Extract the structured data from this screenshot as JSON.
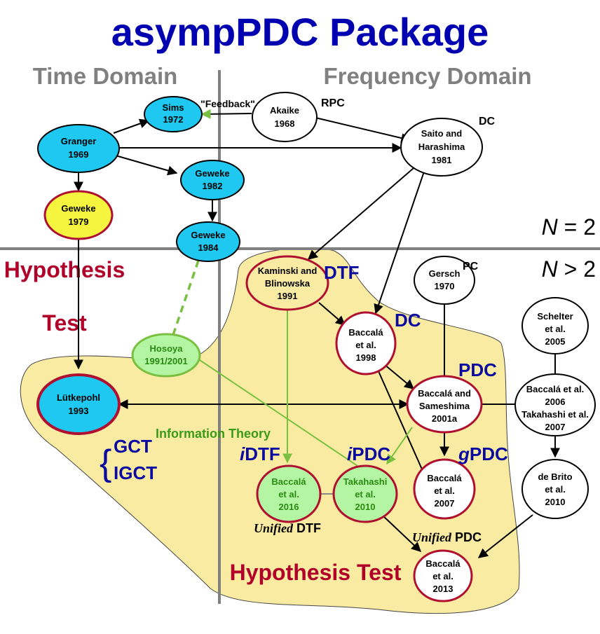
{
  "title": "asympPDC Package",
  "domains": {
    "time": "Time Domain",
    "frequency": "Frequency Domain"
  },
  "dimension_labels": {
    "bivariate_n": "N",
    "bivariate_rest": " = 2",
    "multivariate_n": "N",
    "multivariate_rest": " > 2"
  },
  "labels": {
    "hypothesis_test_left_line1": "Hypothesis",
    "hypothesis_test_left_line2": "Test",
    "hypothesis_test_bottom": "Hypothesis Test",
    "feedback": "\"Feedback\"",
    "rpc": "RPC",
    "dc_saito": "DC",
    "pc_gersch": "PC",
    "dtf": "DTF",
    "dc_baccala1998": "DC",
    "pdc": "PDC",
    "gpdc_g": "g",
    "gpdc_rest": "PDC",
    "idtf_i": "i",
    "idtf_rest": "DTF",
    "ipdc_i": "i",
    "ipdc_rest": "PDC",
    "information_theory": "Information Theory",
    "gct": "GCT",
    "igct": "IGCT",
    "brace": "{",
    "unified_dtf_italic": "Unified",
    "unified_dtf_rest": " DTF",
    "unified_pdc_italic": "Unified",
    "unified_pdc_rest": " PDC"
  },
  "nodes": {
    "sims": {
      "line1": "Sims",
      "line2": "1972"
    },
    "akaike": {
      "line1": "Akaike",
      "line2": "1968"
    },
    "granger": {
      "line1": "Granger",
      "line2": "1969"
    },
    "saito": {
      "line1": "Saito and",
      "line2": "Harashima",
      "line3": "1981"
    },
    "geweke82": {
      "line1": "Geweke",
      "line2": "1982"
    },
    "geweke79": {
      "line1": "Geweke",
      "line2": "1979"
    },
    "geweke84": {
      "line1": "Geweke",
      "line2": "1984"
    },
    "kaminski": {
      "line1": "Kaminski and",
      "line2": "Blinowska",
      "line3": "1991"
    },
    "gersch": {
      "line1": "Gersch",
      "line2": "1970"
    },
    "schelter": {
      "line1": "Schelter",
      "line2": "et al.",
      "line3": "2005"
    },
    "baccala98": {
      "line1": "Baccalá",
      "line2": "et al.",
      "line3": "1998"
    },
    "hosoya": {
      "line1": "Hosoya",
      "line2": "1991/2001"
    },
    "lutkepohl": {
      "line1": "Lütkepohl",
      "line2": "1993"
    },
    "baccala01": {
      "line1": "Baccalá and",
      "line2": "Sameshima",
      "line3": "2001a"
    },
    "baccala06": {
      "line1": "Baccalá et al.",
      "line2": "2006",
      "line3": "Takahashi et al.",
      "line4": "2007"
    },
    "baccala16": {
      "line1": "Baccalá",
      "line2": "et al.",
      "line3": "2016"
    },
    "takahashi": {
      "line1": "Takahashi",
      "line2": "et al.",
      "line3": "2010"
    },
    "baccala07": {
      "line1": "Baccalá",
      "line2": "et al.",
      "line3": "2007"
    },
    "debrito": {
      "line1": "de Brito",
      "line2": "et al.",
      "line3": "2010"
    },
    "baccala13": {
      "line1": "Baccalá",
      "line2": "et al.",
      "line3": "2013"
    }
  },
  "colors": {
    "title": "#0000b0",
    "domain_label": "#808080",
    "hypothesis": "#b0002a",
    "blue_label": "#0a0aa0",
    "green_label": "#3a9a1a",
    "region_fill": "#faeba3",
    "cyan_fill": "#1ec8f0",
    "yellow_fill": "#f5f540",
    "green_fill": "#b4f5a4",
    "node_red": "#b01030",
    "green_line": "#7ac040",
    "divider": "#808080"
  }
}
